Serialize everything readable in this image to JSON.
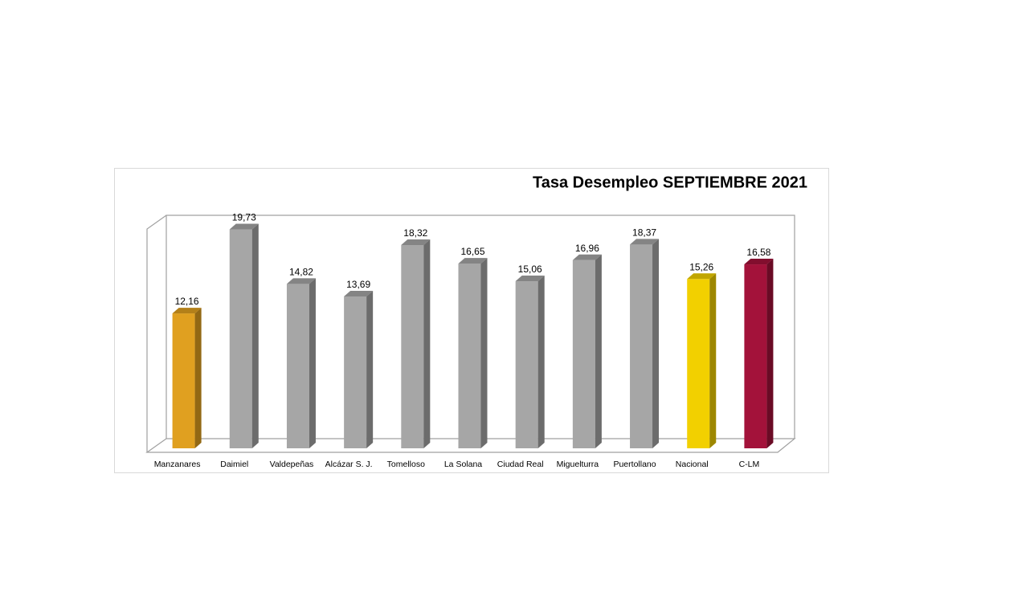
{
  "chart_data": {
    "type": "bar3d",
    "title": "Tasa Desempleo SEPTIEMBRE 2021",
    "categories": [
      "Manzanares",
      "Daimiel",
      "Valdepeñas",
      "Alcázar S. J.",
      "Tomelloso",
      "La Solana",
      "Ciudad Real",
      "Miguelturra",
      "Puertollano",
      "Nacional",
      "C-LM"
    ],
    "values": [
      12.16,
      19.73,
      14.82,
      13.69,
      18.32,
      16.65,
      15.06,
      16.96,
      18.37,
      15.26,
      16.58
    ],
    "value_labels": [
      "12,16",
      "19,73",
      "14,82",
      "13,69",
      "18,32",
      "16,65",
      "15,06",
      "16,96",
      "18,37",
      "15,26",
      "16,58"
    ],
    "colors": [
      "#e0a020",
      "#a6a6a6",
      "#a6a6a6",
      "#a6a6a6",
      "#a6a6a6",
      "#a6a6a6",
      "#a6a6a6",
      "#a6a6a6",
      "#a6a6a6",
      "#f2d000",
      "#a3123a"
    ],
    "ylim": [
      0,
      21
    ]
  }
}
